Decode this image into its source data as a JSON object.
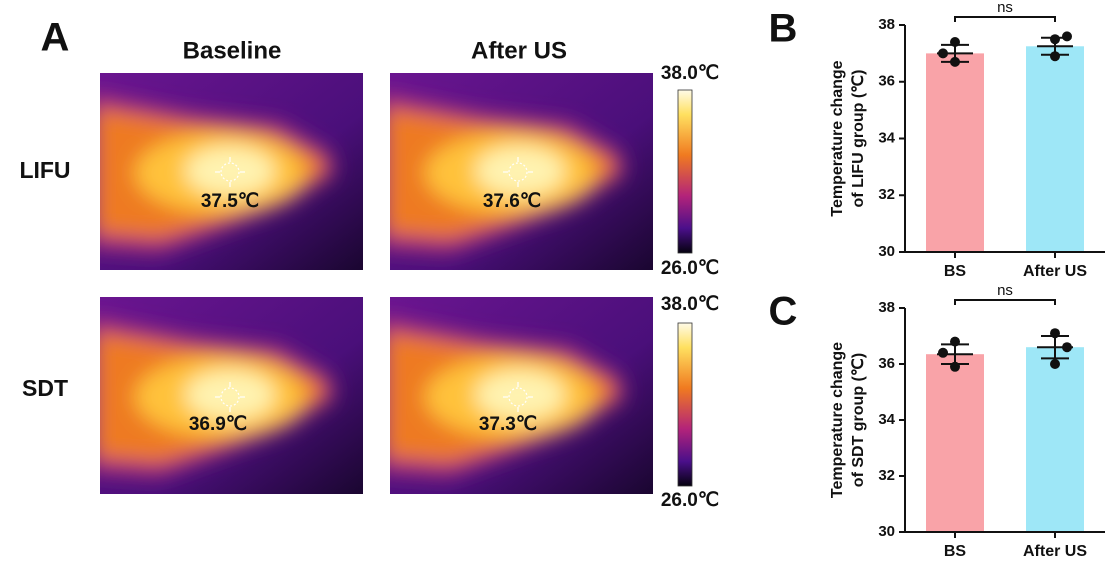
{
  "panel_a": {
    "label": "A",
    "columns": [
      "Baseline",
      "After US"
    ],
    "rows": [
      {
        "name": "LIFU",
        "readings": [
          "37.5℃",
          "37.6℃"
        ],
        "scale_max": "38.0℃",
        "scale_min": "26.0℃"
      },
      {
        "name": "SDT",
        "readings": [
          "36.9℃",
          "37.3℃"
        ],
        "scale_max": "38.0℃",
        "scale_min": "26.0℃"
      }
    ]
  },
  "chart_data": [
    {
      "type": "bar",
      "panel": "B",
      "ylabel": [
        "Temperature change",
        "of LIFU group (℃)"
      ],
      "categories": [
        "BS",
        "After US"
      ],
      "values": [
        37.0,
        37.25
      ],
      "errors": [
        0.3,
        0.3
      ],
      "points": [
        [
          37.4,
          37.0,
          36.7
        ],
        [
          37.5,
          37.6,
          36.9
        ]
      ],
      "colors": [
        "#f9a3a8",
        "#9ee7f7"
      ],
      "annotation": "ns",
      "ylim": [
        30,
        38
      ],
      "yticks": [
        30,
        32,
        34,
        36,
        38
      ]
    },
    {
      "type": "bar",
      "panel": "C",
      "ylabel": [
        "Temperature change",
        "of SDT group (℃)"
      ],
      "categories": [
        "BS",
        "After US"
      ],
      "values": [
        36.35,
        36.6
      ],
      "errors": [
        0.35,
        0.4
      ],
      "points": [
        [
          36.8,
          36.4,
          35.9
        ],
        [
          37.1,
          36.6,
          36.0
        ]
      ],
      "colors": [
        "#f9a3a8",
        "#9ee7f7"
      ],
      "annotation": "ns",
      "ylim": [
        30,
        38
      ],
      "yticks": [
        30,
        32,
        34,
        36,
        38
      ]
    }
  ]
}
